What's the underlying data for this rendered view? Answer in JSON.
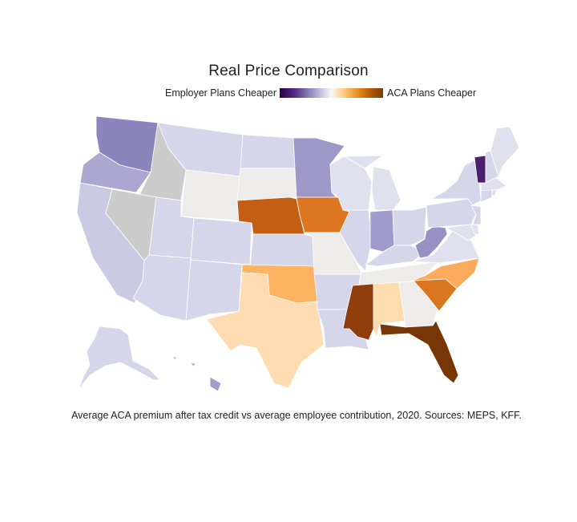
{
  "title": "Real Price Comparison",
  "legend": {
    "left_label": "Employer Plans Cheaper",
    "right_label": "ACA Plans Cheaper",
    "scale_colors": [
      "#2d004b",
      "#542788",
      "#8073ac",
      "#b2abd2",
      "#d8daeb",
      "#f7f7f7",
      "#fee0b6",
      "#fdb863",
      "#e08214",
      "#b35806",
      "#7f3b08"
    ],
    "no_data_color": "#cccccc"
  },
  "caption": "Average ACA premium after tax credit vs average employee contribution, 2020. Sources: MEPS, KFF.",
  "colors": {
    "vt": "#4b1f6f",
    "wa": "#8c84bd",
    "mn": "#9d98c8",
    "in": "#a09bcb",
    "wv": "#9690c4",
    "or": "#aba7d0",
    "hi": "#a39fcb",
    "ca": "#cbcae3",
    "light_purple": "#d6d6ea",
    "pale_purple": "#e0e0ee",
    "neutral": "#eeebeb",
    "no_data": "#cccccc",
    "tx": "#fedbb0",
    "al": "#fddcb0",
    "ok": "#fdb35f",
    "nc": "#fba95b",
    "sc": "#db7620",
    "ia": "#dc7620",
    "ne": "#c45e12",
    "ms": "#8f3d0b",
    "fl": "#773606"
  }
}
